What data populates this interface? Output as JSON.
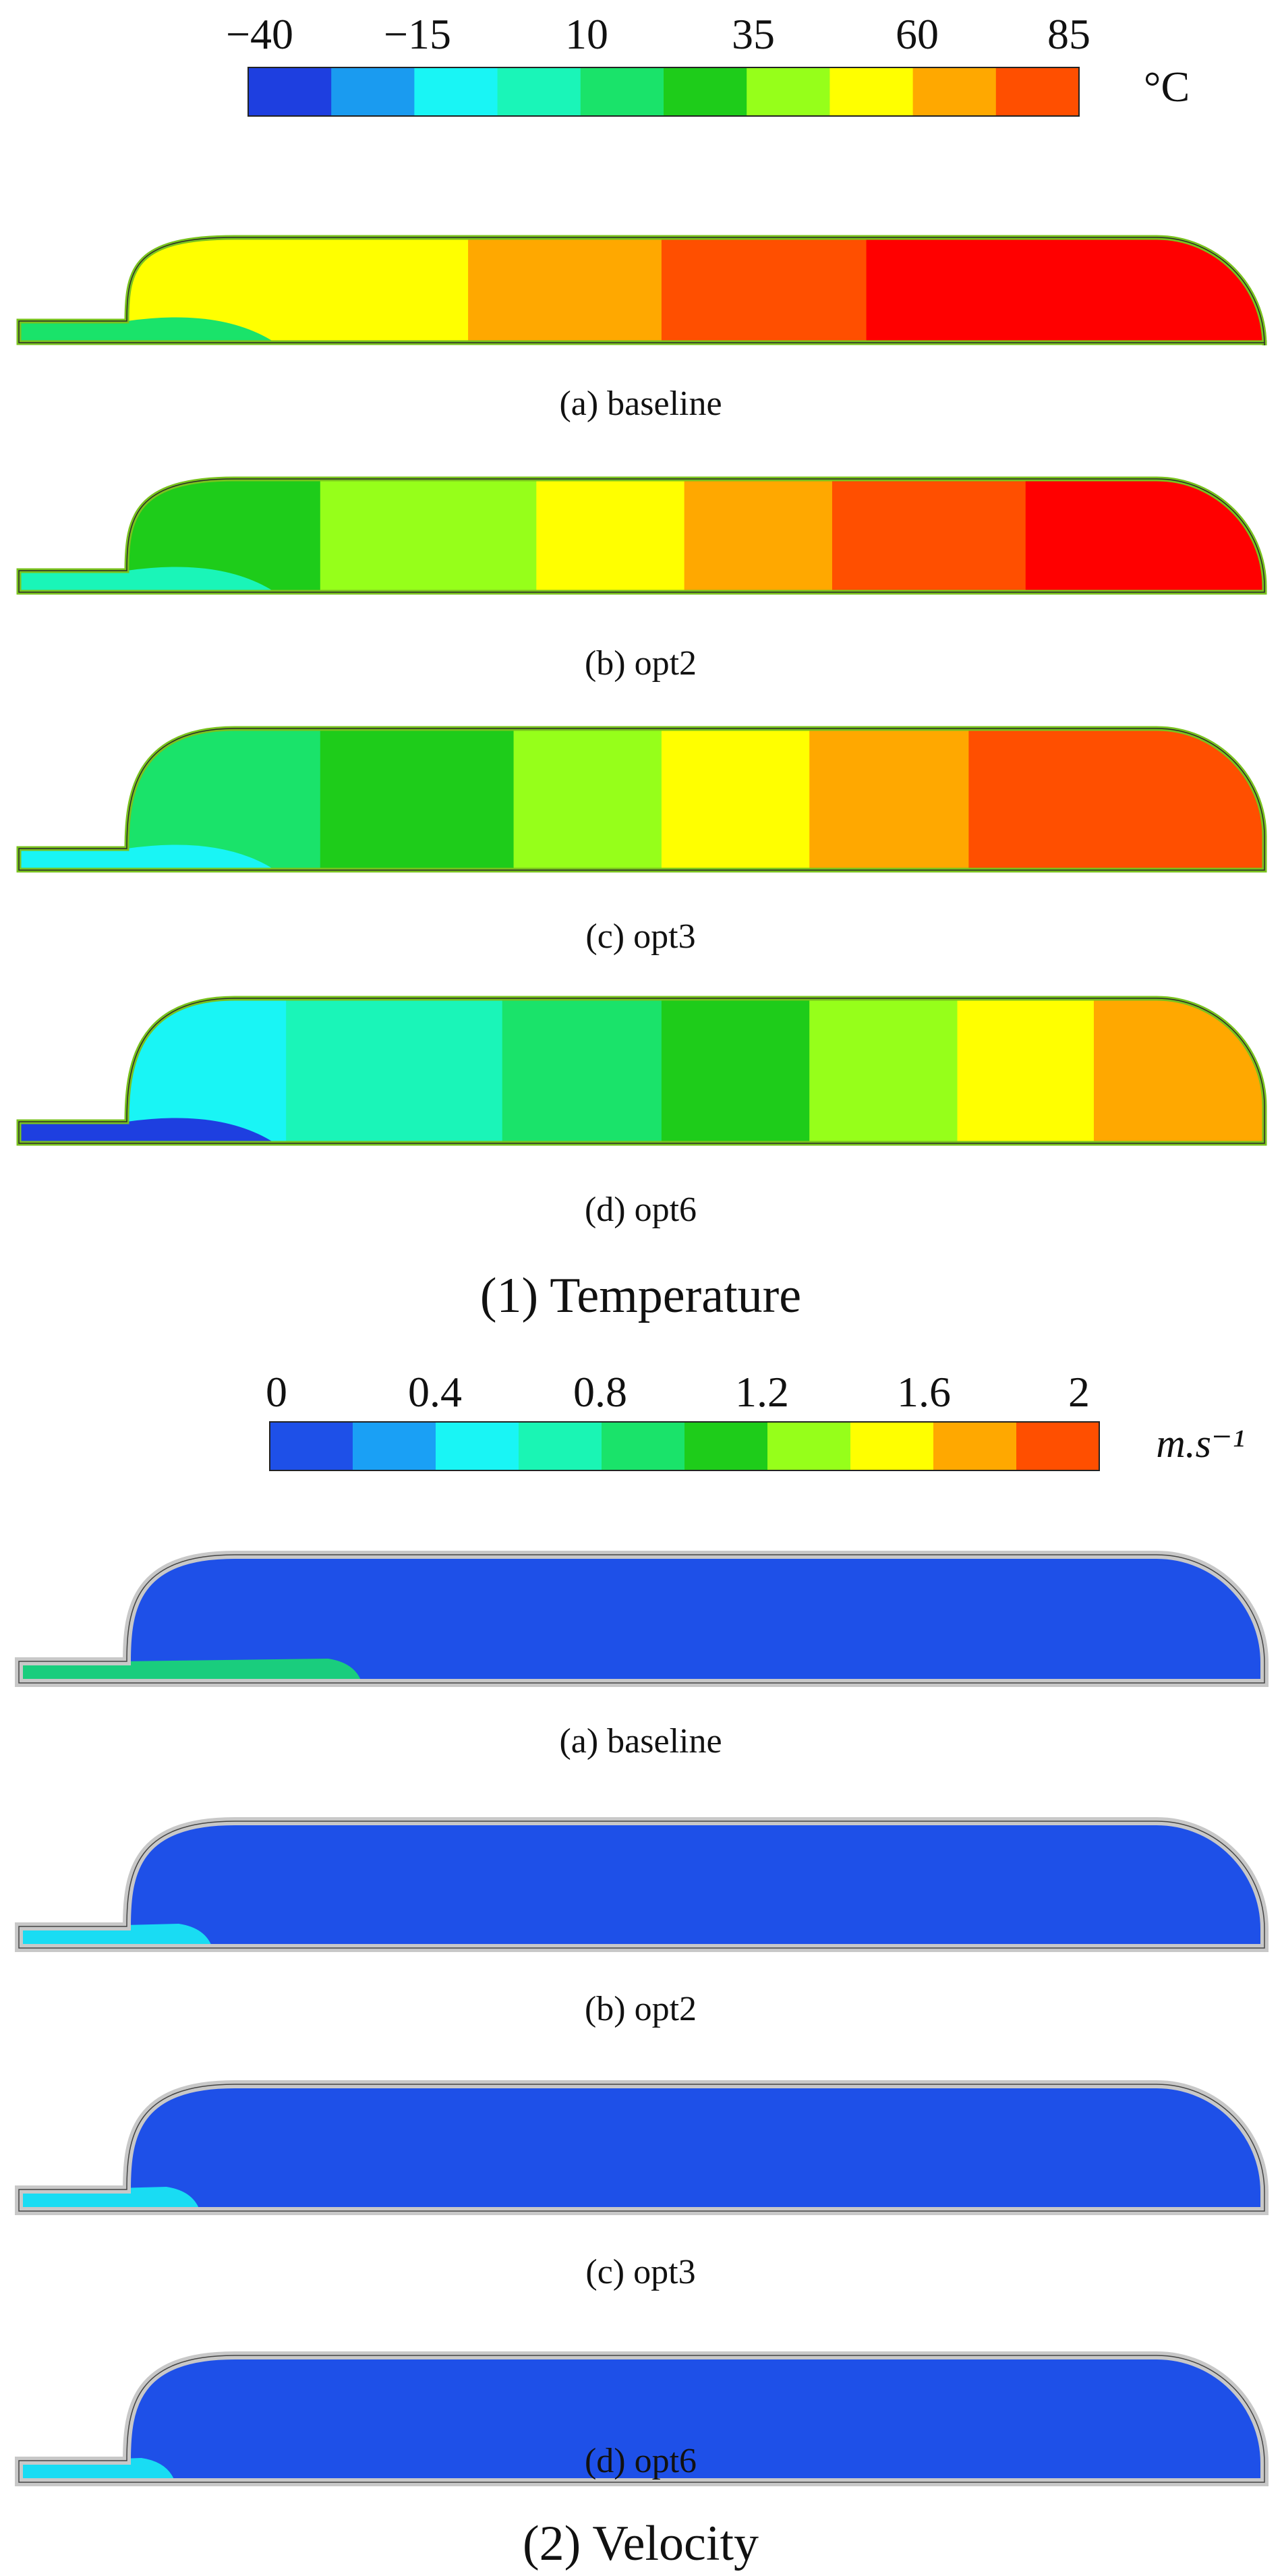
{
  "colors": {
    "temperature": [
      "#1e3fe0",
      "#1a9bf0",
      "#19f5f5",
      "#1af5b8",
      "#1ae36a",
      "#1ecc1a",
      "#96ff1a",
      "#ffff00",
      "#ffa800",
      "#ff4f00",
      "#ff0000"
    ],
    "velocity": [
      "#1e50e8",
      "#1aa0f5",
      "#19f5f5",
      "#1af5b4",
      "#1ae36a",
      "#1ecc1a",
      "#96ff1a",
      "#ffff00",
      "#ffa800",
      "#ff4f00"
    ],
    "wall_temperature": "#79c21e",
    "wall_velocity": "#c8c8c8"
  },
  "temperature_section": {
    "legend": {
      "ticks": [
        "−40",
        "−15",
        "10",
        "35",
        "60",
        "85"
      ],
      "unit": "°C"
    },
    "panels": [
      {
        "caption": "(a)  baseline",
        "bands": [
          {
            "from": 0.0,
            "to": 0.3,
            "color": 7
          },
          {
            "from": 0.3,
            "to": 0.47,
            "color": 8
          },
          {
            "from": 0.47,
            "to": 0.65,
            "color": 9
          },
          {
            "from": 0.65,
            "to": 1.0,
            "color": 10
          }
        ],
        "inlet_color": 4
      },
      {
        "caption": "(b)  opt2",
        "bands": [
          {
            "from": 0.0,
            "to": 0.17,
            "color": 5
          },
          {
            "from": 0.17,
            "to": 0.36,
            "color": 6
          },
          {
            "from": 0.36,
            "to": 0.49,
            "color": 7
          },
          {
            "from": 0.49,
            "to": 0.62,
            "color": 8
          },
          {
            "from": 0.62,
            "to": 0.79,
            "color": 9
          },
          {
            "from": 0.79,
            "to": 1.0,
            "color": 10
          }
        ],
        "inlet_color": 3
      },
      {
        "caption": "(c)  opt3",
        "bands": [
          {
            "from": 0.0,
            "to": 0.17,
            "color": 4
          },
          {
            "from": 0.17,
            "to": 0.34,
            "color": 5
          },
          {
            "from": 0.34,
            "to": 0.47,
            "color": 6
          },
          {
            "from": 0.47,
            "to": 0.6,
            "color": 7
          },
          {
            "from": 0.6,
            "to": 0.74,
            "color": 8
          },
          {
            "from": 0.74,
            "to": 1.0,
            "color": 9
          }
        ],
        "inlet_color": 2
      },
      {
        "caption": "(d)  opt6",
        "bands": [
          {
            "from": 0.0,
            "to": 0.14,
            "color": 2
          },
          {
            "from": 0.14,
            "to": 0.33,
            "color": 3
          },
          {
            "from": 0.33,
            "to": 0.47,
            "color": 4
          },
          {
            "from": 0.47,
            "to": 0.6,
            "color": 5
          },
          {
            "from": 0.6,
            "to": 0.73,
            "color": 6
          },
          {
            "from": 0.73,
            "to": 0.85,
            "color": 7
          },
          {
            "from": 0.85,
            "to": 1.0,
            "color": 8
          }
        ],
        "inlet_color": 0
      }
    ],
    "title": "(1) Temperature"
  },
  "velocity_section": {
    "legend": {
      "ticks": [
        "0",
        "0.4",
        "0.8",
        "1.2",
        "1.6",
        "2"
      ],
      "unit": "m.s⁻¹"
    },
    "panels": [
      {
        "caption": "(a)  baseline",
        "body_color": 0,
        "plume_color": 4,
        "plume_length": 0.27
      },
      {
        "caption": "(b)  opt2",
        "body_color": 0,
        "plume_color": 2,
        "plume_length": 0.15
      },
      {
        "caption": "(c)  opt3",
        "body_color": 0,
        "plume_color": 2,
        "plume_length": 0.14
      },
      {
        "caption": "(d)  opt6",
        "body_color": 0,
        "plume_color": 2,
        "plume_length": 0.12
      }
    ],
    "title": "(2) Velocity"
  }
}
